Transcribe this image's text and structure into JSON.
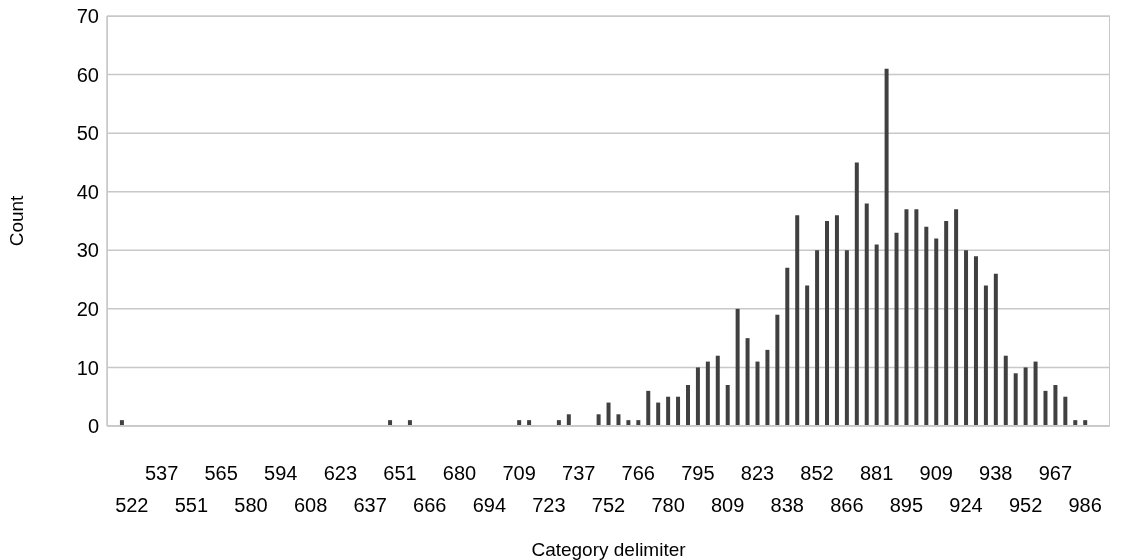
{
  "chart_data": {
    "type": "bar",
    "xlabel": "Category delimiter",
    "ylabel": "Count",
    "categories": [
      null,
      null,
      "522",
      null,
      null,
      "537",
      null,
      null,
      "551",
      null,
      null,
      "565",
      null,
      null,
      "580",
      null,
      null,
      "594",
      null,
      null,
      "608",
      null,
      null,
      "623",
      null,
      null,
      "637",
      null,
      null,
      "651",
      null,
      null,
      "666",
      null,
      null,
      "680",
      null,
      null,
      "694",
      null,
      null,
      "709",
      null,
      null,
      "723",
      null,
      null,
      "737",
      null,
      null,
      "752",
      null,
      null,
      "766",
      null,
      null,
      "780",
      null,
      null,
      "795",
      null,
      null,
      "809",
      null,
      null,
      "823",
      null,
      null,
      "838",
      null,
      null,
      "852",
      null,
      null,
      "866",
      null,
      null,
      "881",
      null,
      null,
      "895",
      null,
      null,
      "909",
      null,
      null,
      "924",
      null,
      null,
      "938",
      null,
      null,
      "952",
      null,
      null,
      "967",
      null,
      null,
      "986",
      null,
      null
    ],
    "values": [
      0,
      1,
      0,
      0,
      0,
      0,
      0,
      0,
      0,
      0,
      0,
      0,
      0,
      0,
      0,
      0,
      0,
      0,
      0,
      0,
      0,
      0,
      0,
      0,
      0,
      0,
      0,
      0,
      1,
      0,
      1,
      0,
      0,
      0,
      0,
      0,
      0,
      0,
      0,
      0,
      0,
      1,
      1,
      0,
      0,
      1,
      2,
      0,
      0,
      2,
      4,
      2,
      1,
      1,
      6,
      4,
      5,
      5,
      7,
      10,
      11,
      12,
      7,
      20,
      15,
      11,
      13,
      19,
      27,
      36,
      24,
      30,
      35,
      36,
      30,
      45,
      38,
      31,
      61,
      33,
      37,
      37,
      34,
      32,
      35,
      37,
      30,
      29,
      24,
      26,
      12,
      9,
      10,
      11,
      6,
      7,
      5,
      1,
      1,
      0,
      0
    ],
    "color": "#404040",
    "ylim": [
      0,
      70
    ],
    "yticks": [
      0,
      10,
      20,
      30,
      40,
      50,
      60,
      70
    ],
    "grid": "y"
  }
}
